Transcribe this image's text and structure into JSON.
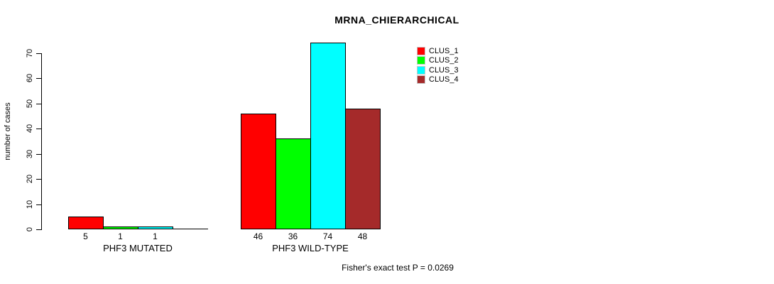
{
  "chart_data": {
    "type": "bar",
    "title": "MRNA_CHIERARCHICAL",
    "ylabel": "number of cases",
    "xlabel": "",
    "ylim": [
      0,
      70
    ],
    "yticks": [
      0,
      10,
      20,
      30,
      40,
      50,
      60,
      70
    ],
    "grid": false,
    "legend_position": "top-right",
    "series_names": [
      "CLUS_1",
      "CLUS_2",
      "CLUS_3",
      "CLUS_4"
    ],
    "colors": [
      "#FF0000",
      "#00FF00",
      "#00FFFF",
      "#A52A2A"
    ],
    "groups": [
      {
        "label": "PHF3 MUTATED",
        "values": [
          5,
          1,
          1,
          0
        ],
        "value_labels": [
          "5",
          "1",
          "1",
          ""
        ]
      },
      {
        "label": "PHF3 WILD-TYPE",
        "values": [
          46,
          36,
          74,
          48
        ],
        "value_labels": [
          "46",
          "36",
          "74",
          "48"
        ]
      }
    ],
    "annotation": "Fisher's exact test P = 0.0269"
  }
}
